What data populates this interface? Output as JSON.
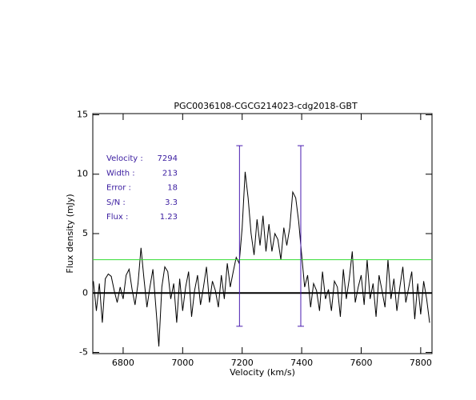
{
  "chart_data": {
    "type": "line",
    "title": "PGC0036108-CGCG214023-cdg2018-GBT",
    "xlabel": "Velocity (km/s)",
    "ylabel": "Flux density (mJy)",
    "xlim": [
      6698,
      7838
    ],
    "ylim": [
      -5.1,
      15.1
    ],
    "xticks": [
      6800,
      7000,
      7200,
      7400,
      7600,
      7800
    ],
    "yticks": [
      -5,
      0,
      5,
      10,
      15
    ],
    "color": "#000000",
    "x": [
      6700,
      6710,
      6720,
      6730,
      6740,
      6750,
      6760,
      6770,
      6780,
      6790,
      6800,
      6810,
      6820,
      6830,
      6840,
      6850,
      6860,
      6870,
      6880,
      6890,
      6900,
      6910,
      6920,
      6930,
      6940,
      6950,
      6960,
      6970,
      6980,
      6990,
      7000,
      7010,
      7020,
      7030,
      7040,
      7050,
      7060,
      7070,
      7080,
      7090,
      7100,
      7110,
      7120,
      7130,
      7140,
      7150,
      7160,
      7170,
      7180,
      7190,
      7200,
      7210,
      7220,
      7230,
      7240,
      7250,
      7260,
      7270,
      7280,
      7290,
      7300,
      7310,
      7320,
      7330,
      7340,
      7350,
      7360,
      7370,
      7380,
      7390,
      7400,
      7410,
      7420,
      7430,
      7440,
      7450,
      7460,
      7470,
      7480,
      7490,
      7500,
      7510,
      7520,
      7530,
      7540,
      7550,
      7560,
      7570,
      7580,
      7590,
      7600,
      7610,
      7620,
      7630,
      7640,
      7650,
      7660,
      7670,
      7680,
      7690,
      7700,
      7710,
      7720,
      7730,
      7740,
      7750,
      7760,
      7770,
      7780,
      7790,
      7800,
      7810,
      7820,
      7830
    ],
    "values": [
      1,
      -1.5,
      0.8,
      -2.5,
      1.2,
      1.6,
      1.4,
      0.2,
      -0.8,
      0.5,
      -0.5,
      1.5,
      2,
      0.3,
      -1,
      0.8,
      3.8,
      1.2,
      -1.2,
      0.5,
      2,
      -1.2,
      -4.5,
      0.5,
      2.2,
      1.8,
      -0.5,
      0.8,
      -2.5,
      1.2,
      -1.5,
      0.5,
      1.8,
      -2,
      0.2,
      1.5,
      -1,
      0.5,
      2.2,
      -0.8,
      1,
      0.2,
      -1.2,
      1.5,
      -0.5,
      2.5,
      0.5,
      1.8,
      3,
      2.5,
      5.5,
      10.2,
      8,
      5,
      3.2,
      6.2,
      4,
      6.5,
      3.5,
      5.8,
      3.5,
      5,
      4.5,
      2.8,
      5.5,
      4,
      5.5,
      8.5,
      8,
      6,
      3.2,
      0.5,
      1.5,
      -1.2,
      0.8,
      0.2,
      -1.5,
      1.8,
      -0.5,
      0.3,
      -1.5,
      1,
      0.5,
      -2,
      2,
      -0.5,
      1.2,
      3.5,
      -0.8,
      0.5,
      1.5,
      -1,
      2.8,
      -0.5,
      0.8,
      -2,
      1.5,
      0.2,
      -1.2,
      2.8,
      -0.5,
      1.2,
      -1.5,
      0.5,
      2.2,
      -0.8,
      0.5,
      1.8,
      -2.2,
      0.8,
      -1.8,
      1,
      -0.5,
      -2.5
    ],
    "zero_line": 0,
    "threshold": 2.8,
    "threshold_color": "#33dd33",
    "markers": [
      7191,
      7397
    ],
    "marker_range": [
      -2.8,
      12.4
    ],
    "marker_color": "#4a1cb0",
    "annotations": [
      {
        "label": "Velocity :",
        "value": 7294
      },
      {
        "label": "Width :",
        "value": 213
      },
      {
        "label": "Error :",
        "value": 18
      },
      {
        "label": "S/N :",
        "value": 3.3
      },
      {
        "label": "Flux :",
        "value": 1.23
      }
    ]
  }
}
